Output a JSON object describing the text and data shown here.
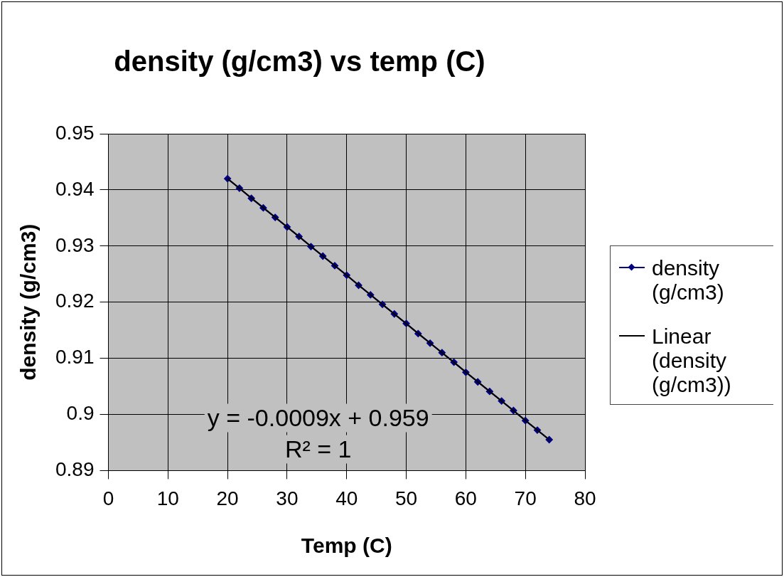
{
  "chart_data": {
    "type": "scatter",
    "title": "density (g/cm3) vs temp (C)",
    "xlabel": "Temp (C)",
    "ylabel": "density (g/cm3)",
    "xlim": [
      0,
      80
    ],
    "xticks": [
      0,
      10,
      20,
      30,
      40,
      50,
      60,
      70,
      80
    ],
    "ylim": [
      0.89,
      0.95
    ],
    "yticks": [
      0.89,
      0.9,
      0.91,
      0.92,
      0.93,
      0.94,
      0.95
    ],
    "grid": true,
    "legend": "right",
    "line_style": "solid",
    "annotations": [
      "y = -0.0009x + 0.959",
      "R² = 1"
    ],
    "series": [
      {
        "name": "density (g/cm3)",
        "color": "#000080",
        "marker": "diamond",
        "x": [
          20,
          22,
          24,
          26,
          28,
          30,
          32,
          34,
          36,
          38,
          40,
          42,
          44,
          46,
          48,
          50,
          52,
          54,
          56,
          58,
          60,
          62,
          64,
          66,
          68,
          70,
          72,
          74
        ],
        "values": [
          0.942,
          0.9403,
          0.9385,
          0.9368,
          0.9351,
          0.9334,
          0.9317,
          0.9299,
          0.9282,
          0.9265,
          0.9248,
          0.923,
          0.9213,
          0.9196,
          0.9179,
          0.9162,
          0.9144,
          0.9127,
          0.911,
          0.9093,
          0.9075,
          0.9058,
          0.9041,
          0.9024,
          0.9007,
          0.8989,
          0.8972,
          0.8955
        ]
      },
      {
        "name": "Linear (density (g/cm3))",
        "type": "line",
        "color": "#000000",
        "marker": "none",
        "x": [
          20,
          74
        ],
        "values": [
          0.942,
          0.8955
        ]
      }
    ]
  }
}
